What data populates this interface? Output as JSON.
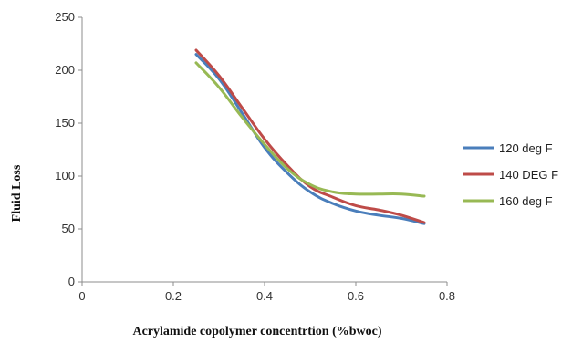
{
  "chart_data": {
    "type": "line",
    "title": "",
    "xlabel": "Acrylamide copolymer concentrtion (%bwoc)",
    "ylabel": "Fluid Loss",
    "xlim": [
      0,
      0.8
    ],
    "ylim": [
      0,
      250
    ],
    "x_ticks": [
      "0",
      "0.2",
      "0.4",
      "0.6",
      "0.8"
    ],
    "y_ticks": [
      "0",
      "50",
      "100",
      "150",
      "200",
      "250"
    ],
    "grid": false,
    "legend_position": "right",
    "x": [
      0.25,
      0.3,
      0.35,
      0.4,
      0.45,
      0.5,
      0.55,
      0.6,
      0.65,
      0.7,
      0.75
    ],
    "series": [
      {
        "name": "120 deg F",
        "color": "#4a7ebb",
        "values": [
          215,
          192,
          160,
          127,
          103,
          85,
          74,
          67,
          63,
          60,
          55
        ]
      },
      {
        "name": "140 DEG F",
        "color": "#be4b48",
        "values": [
          219,
          195,
          165,
          135,
          110,
          90,
          80,
          72,
          68,
          63,
          56
        ]
      },
      {
        "name": "160 deg F",
        "color": "#98b954",
        "values": [
          207,
          184,
          156,
          130,
          107,
          92,
          85,
          83,
          83,
          83,
          81
        ]
      }
    ]
  }
}
